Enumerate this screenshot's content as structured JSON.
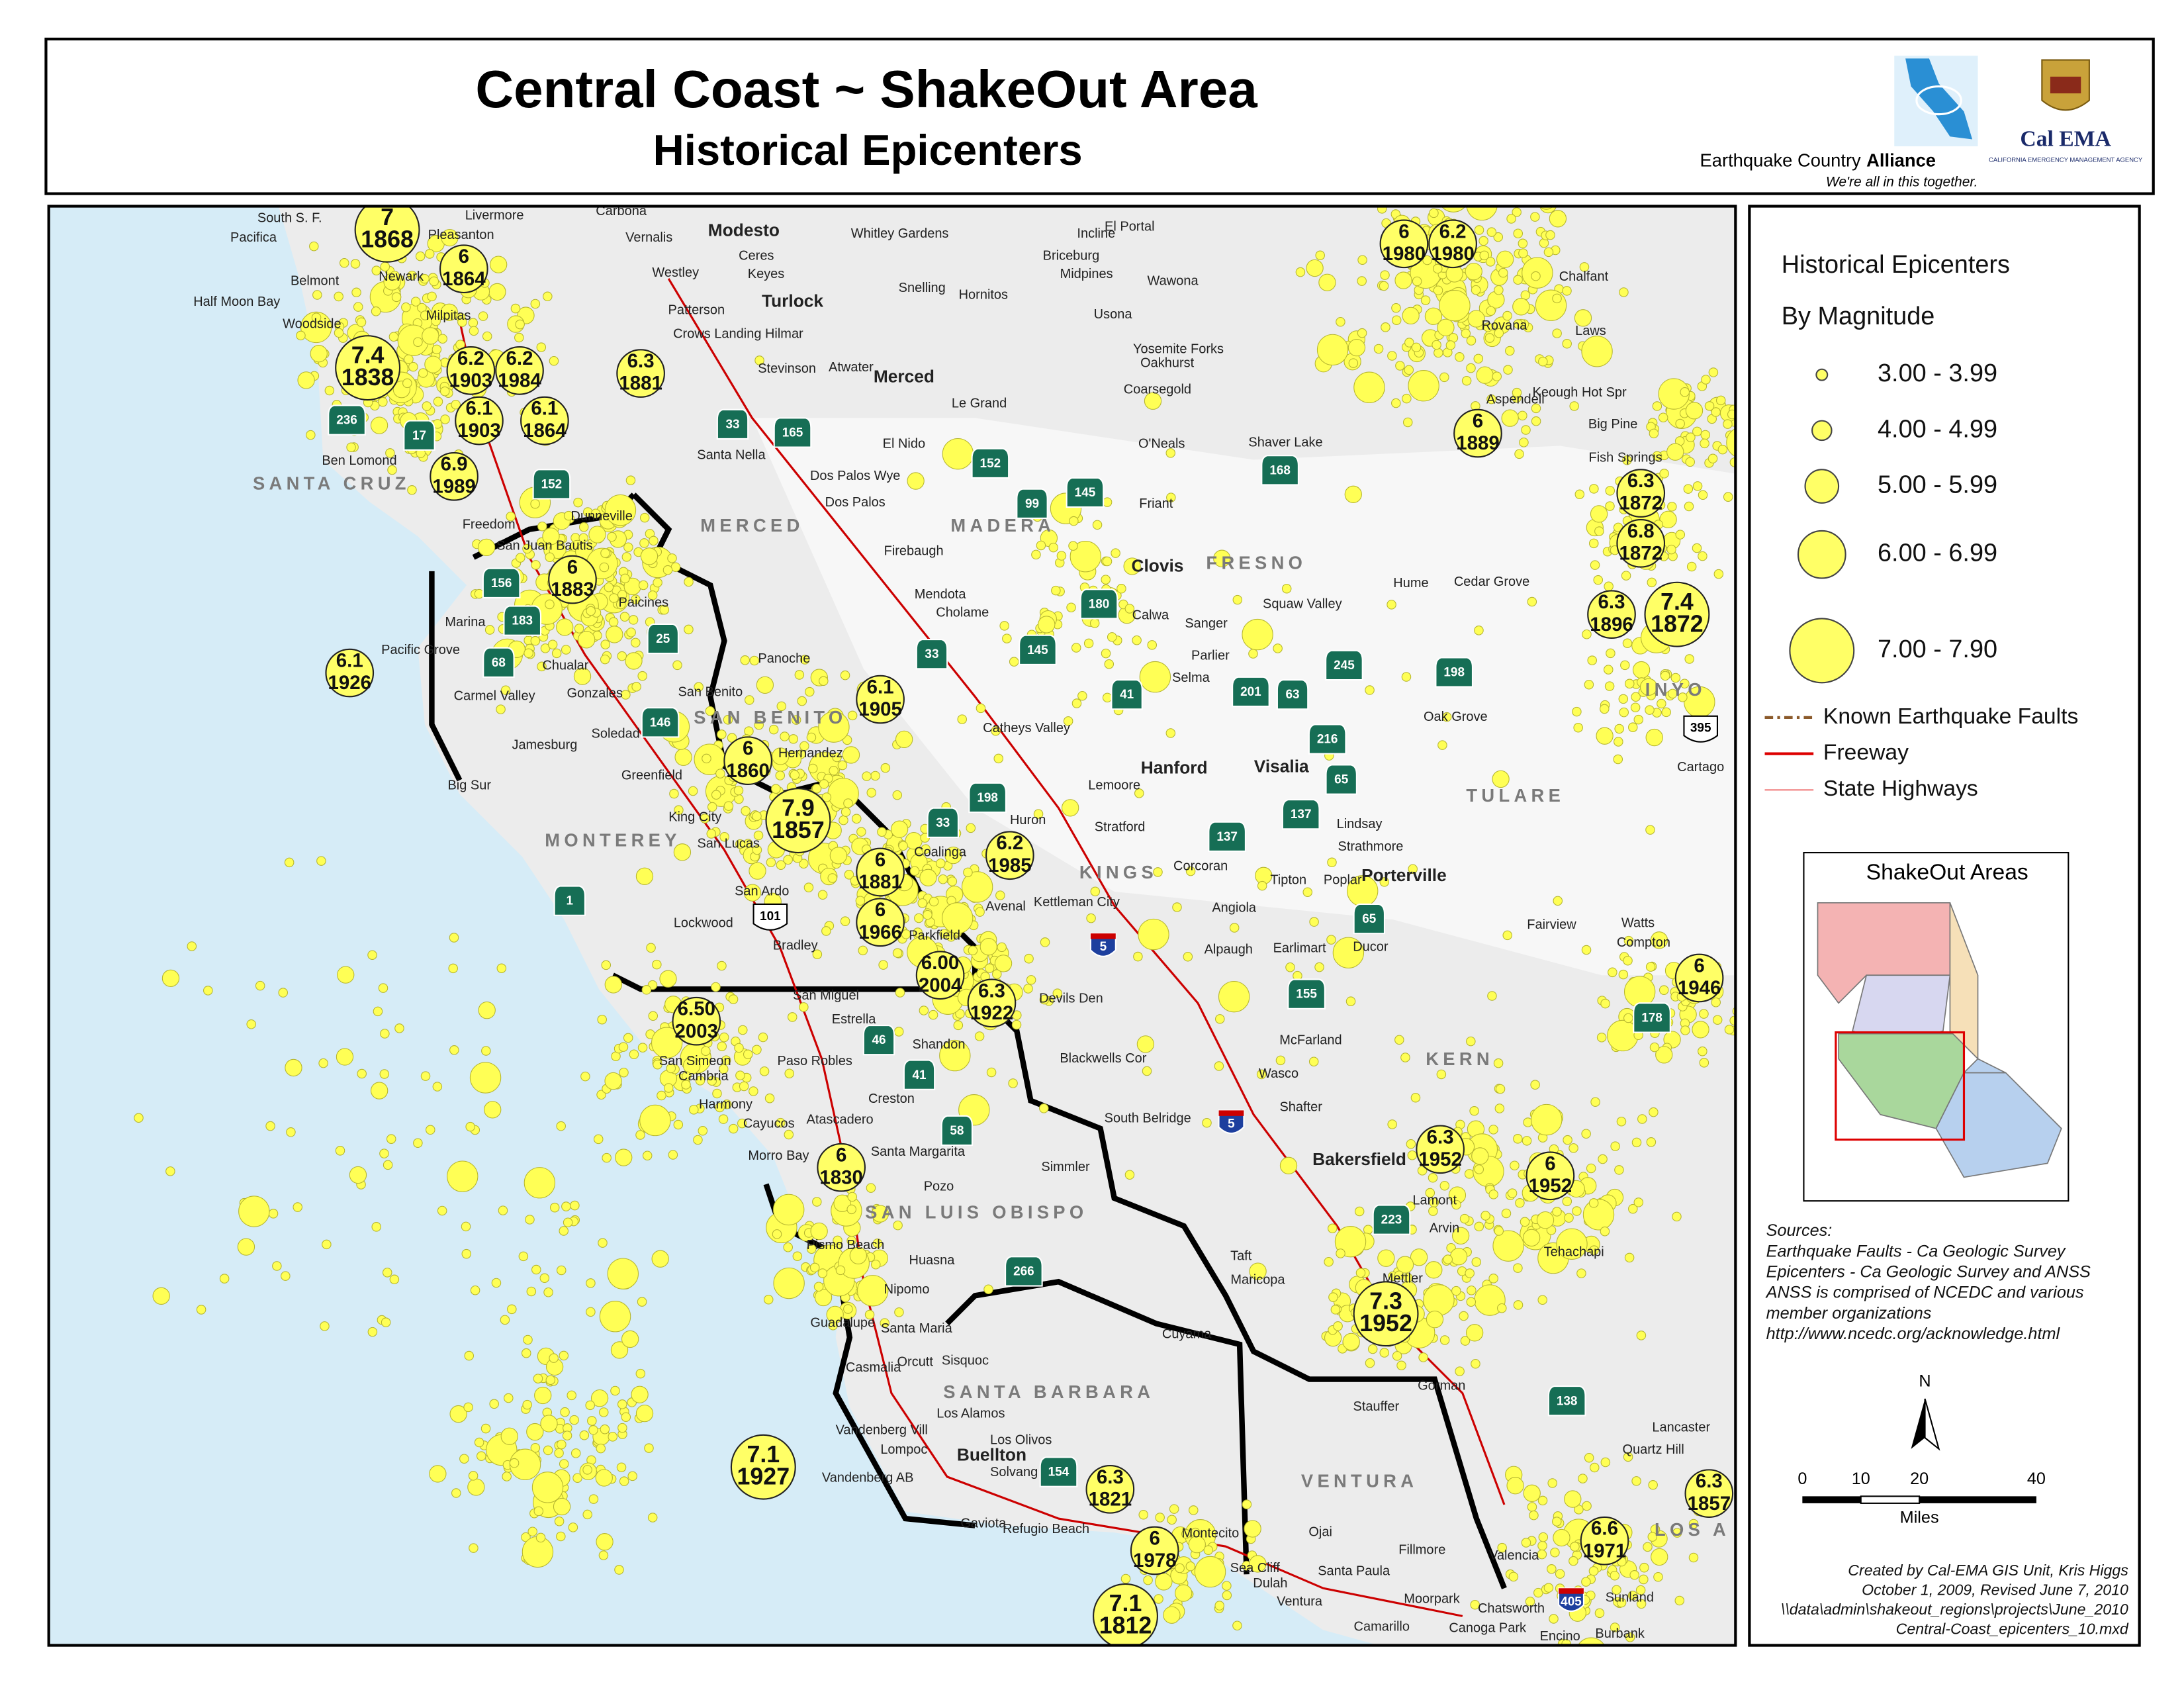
{
  "header": {
    "title": "Central Coast ~ ShakeOut Area",
    "subtitle": "Historical Epicenters",
    "eca": {
      "name": "Earthquake Country",
      "name_bold": "Alliance",
      "tagline": "We're all in this together."
    },
    "calema": {
      "name": "Cal EMA",
      "agency": "CALIFORNIA EMERGENCY MANAGEMENT AGENCY"
    }
  },
  "legend": {
    "title": "Historical Epicenters",
    "subtitle": "By Magnitude",
    "classes": [
      "3.00 - 3.99",
      "4.00 - 4.99",
      "5.00 - 5.99",
      "6.00 - 6.99",
      "7.00 - 7.90"
    ],
    "lines": [
      "Known Earthquake Faults",
      "Freeway",
      "State Highways"
    ]
  },
  "inset": {
    "title": "ShakeOut Areas"
  },
  "sources": [
    "Sources:",
    "Earthquake Faults - Ca Geologic Survey",
    "Epicenters - Ca Geologic Survey and ANSS",
    "ANSS is comprised of NCEDC and various",
    "member organizations",
    "http://www.ncedc.org/acknowledge.html"
  ],
  "scale": {
    "north": "N",
    "ticks": [
      "0",
      "10",
      "20",
      "40"
    ],
    "unit": "Miles"
  },
  "credits": [
    "Created by Cal-EMA GIS Unit, Kris Higgs",
    "October 1, 2009, Revised June 7, 2010",
    "\\\\data\\admin\\shakeout_regions\\projects\\June_2010",
    "Central-Coast_epicenters_10.mxd"
  ],
  "counties": [
    "SANTA CRUZ",
    "MERCED",
    "MADERA",
    "FRESNO",
    "SAN BENITO",
    "MONTEREY",
    "KINGS",
    "TULARE",
    "INYO",
    "KERN",
    "SAN LUIS OBISPO",
    "SANTA BARBARA",
    "VENTURA",
    "LOS A"
  ],
  "cities": [
    "South S. F.",
    "Pacifica",
    "Belmont",
    "Half Moon Bay",
    "Woodside",
    "Newark",
    "Milpitas",
    "Livermore",
    "Pleasanton",
    "Carbona",
    "Vernalis",
    "Modesto",
    "Westley",
    "Ceres",
    "Keyes",
    "Patterson",
    "Turlock",
    "Crows Landing Hilmar",
    "Stevinson",
    "Atwater",
    "Merced",
    "Whitley Gardens",
    "Incline",
    "El Portal",
    "Briceburg",
    "Midpines",
    "Wawona",
    "Snelling",
    "Hornitos",
    "Usona",
    "Yosemite Forks",
    "Oakhurst",
    "Coarsegold",
    "Le Grand",
    "El Nido",
    "Santa Nella",
    "Dos Palos Wye",
    "Dos Palos",
    "O'Neals",
    "Shaver Lake",
    "Friant",
    "Firebaugh",
    "Clovis",
    "Mendota",
    "Cholame",
    "Calwa",
    "Sanger",
    "Squaw Valley",
    "Hume",
    "Cedar Grove",
    "Parlier",
    "Selma",
    "Catheys Valley",
    "Hanford",
    "Visalia",
    "Lemoore",
    "Oak Grove",
    "Cartago",
    "Lindsay",
    "Strathmore",
    "Porterville",
    "Stratford",
    "Corcoran",
    "Tipton",
    "Poplar",
    "Angiola",
    "Kettleman City",
    "Avenal",
    "Alpaugh",
    "Earlimart",
    "Ducor",
    "Huron",
    "Coalinga",
    "Fairview",
    "Watts",
    "Compton",
    "Devils Den",
    "McFarland",
    "Wasco",
    "Blackwells Cor",
    "Shafter",
    "South Belridge",
    "Simmler",
    "Bakersfield",
    "Lamont",
    "Arvin",
    "Tehachapi",
    "Taft",
    "Maricopa",
    "Mettler",
    "Cuyama",
    "Gorman",
    "Stauffer",
    "Lancaster",
    "Quartz Hill",
    "Ojai",
    "Fillmore",
    "Santa Paula",
    "Moorpark",
    "Camarillo",
    "Valencia",
    "Sunland",
    "Chatsworth",
    "Canoga Park",
    "Encino",
    "Burbank",
    "Montecito",
    "Sea Cliff",
    "Dulah",
    "Ventura",
    "Refugio Beach",
    "Gaviota",
    "Solvang",
    "Buellton",
    "Los Olivos",
    "Los Alamos",
    "Lompoc",
    "Vandenberg Vill",
    "Vandenberg AB",
    "Casmalia",
    "Orcutt",
    "Sisquoc",
    "Santa Maria",
    "Guadalupe",
    "Nipomo",
    "Huasna",
    "Pismo Beach",
    "Pozo",
    "Santa Margarita",
    "Atascadero",
    "Creston",
    "Cayucos",
    "Morro Bay",
    "Harmony",
    "Cambria",
    "San Simeon",
    "Paso Robles",
    "Shandon",
    "Estrella",
    "San Miguel",
    "Bradley",
    "Parkfield",
    "Lockwood",
    "San Ardo",
    "San Lucas",
    "King City",
    "Greenfield",
    "Soledad",
    "Jamesburg",
    "Big Sur",
    "Carmel Valley",
    "Gonzales",
    "Chualar",
    "Pacific Grove",
    "Marina",
    "Paicines",
    "San Juan Bautis",
    "Dunneville",
    "Freedom",
    "Ben Lomond",
    "San Benito",
    "Hernandez",
    "Panoche",
    "Chalfant",
    "Rovana",
    "Laws",
    "Aspendell",
    "Keough Hot Spr",
    "Big Pine",
    "Fish Springs"
  ],
  "highways": [
    "236",
    "17",
    "33",
    "165",
    "152",
    "152",
    "99",
    "145",
    "168",
    "156",
    "183",
    "25",
    "68",
    "180",
    "33",
    "145",
    "41",
    "201",
    "63",
    "245",
    "198",
    "146",
    "216",
    "65",
    "198",
    "33",
    "137",
    "137",
    "1",
    "101",
    "5",
    "65",
    "155",
    "178",
    "46",
    "41",
    "58",
    "5",
    "223",
    "266",
    "138",
    "154",
    "405",
    "395"
  ],
  "epicenters": [
    {
      "magnitude": "7",
      "year": "1868"
    },
    {
      "magnitude": "6",
      "year": "1864"
    },
    {
      "magnitude": "7.4",
      "year": "1838"
    },
    {
      "magnitude": "6.2",
      "year": "1903"
    },
    {
      "magnitude": "6.2",
      "year": "1984"
    },
    {
      "magnitude": "6.3",
      "year": "1881"
    },
    {
      "magnitude": "6.1",
      "year": "1903"
    },
    {
      "magnitude": "6.1",
      "year": "1864"
    },
    {
      "magnitude": "6.9",
      "year": "1989"
    },
    {
      "magnitude": "6",
      "year": "1883"
    },
    {
      "magnitude": "6.1",
      "year": "1926"
    },
    {
      "magnitude": "6.1",
      "year": "1905"
    },
    {
      "magnitude": "6",
      "year": "1860"
    },
    {
      "magnitude": "7.9",
      "year": "1857"
    },
    {
      "magnitude": "6",
      "year": "1881"
    },
    {
      "magnitude": "6",
      "year": "1966"
    },
    {
      "magnitude": "6.00",
      "year": "2004"
    },
    {
      "magnitude": "6.2",
      "year": "1985"
    },
    {
      "magnitude": "6.3",
      "year": "1922"
    },
    {
      "magnitude": "6.50",
      "year": "2003"
    },
    {
      "magnitude": "6",
      "year": "1830"
    },
    {
      "magnitude": "6",
      "year": "1980"
    },
    {
      "magnitude": "6.2",
      "year": "1980"
    },
    {
      "magnitude": "6",
      "year": "1889"
    },
    {
      "magnitude": "6.3",
      "year": "1872"
    },
    {
      "magnitude": "6.8",
      "year": "1872"
    },
    {
      "magnitude": "6.3",
      "year": "1896"
    },
    {
      "magnitude": "7.4",
      "year": "1872"
    },
    {
      "magnitude": "6",
      "year": "1946"
    },
    {
      "magnitude": "6.3",
      "year": "1952"
    },
    {
      "magnitude": "6",
      "year": "1952"
    },
    {
      "magnitude": "7.3",
      "year": "1952"
    },
    {
      "magnitude": "7.1",
      "year": "1927"
    },
    {
      "magnitude": "6.3",
      "year": "1821"
    },
    {
      "magnitude": "6",
      "year": "1978"
    },
    {
      "magnitude": "7.1",
      "year": "1812"
    },
    {
      "magnitude": "6.6",
      "year": "1971"
    },
    {
      "magnitude": "6.3",
      "year": "1857"
    }
  ]
}
